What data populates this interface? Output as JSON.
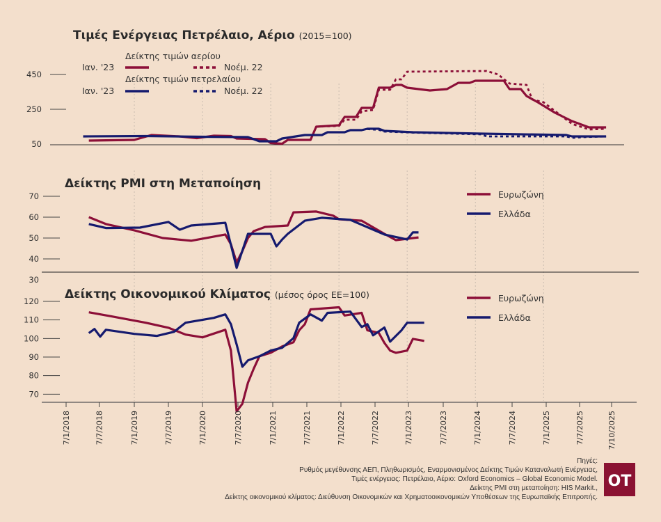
{
  "colors": {
    "background": "#f3dfcc",
    "eurozone_gas_red": "#8c0f38",
    "greece_oil_blue": "#151a6e",
    "logo": "#8a1232"
  },
  "shared_x_axis": {
    "tick_labels": [
      "7/1/2018",
      "7/7/2018",
      "7/1/2019",
      "7/7/2019",
      "7/1/2020",
      "7/7/2020",
      "7/1/2021",
      "7/7/2021",
      "7/1/2022",
      "7/7/2022",
      "7/1/2023",
      "7/7/2023",
      "7/1/2024",
      "7/7/2024",
      "7/1/2025",
      "7/7/2025",
      "7/10/2025"
    ]
  },
  "chart_data": [
    {
      "type": "line",
      "title": "Τιμές Ενέργειας Πετρέλαιο, Αέριο",
      "subtitle": "(2015=100)",
      "yticks": [
        50,
        250,
        450
      ],
      "ylim": [
        50,
        450
      ],
      "grid": "vertical dotted",
      "legend": {
        "gas_label": "Δείκτης τιμών αερίου",
        "oil_label": "Δείκτης τιμών πετρελαίου",
        "solid_label": "Ιαν. '23",
        "dashed_label": "Νοέμ. 22"
      },
      "series": [
        {
          "name": "Δείκτης τιμών αερίου Ιαν. '23",
          "color": "#8c0f38",
          "style": "solid",
          "points": [
            [
              "2018-05",
              70
            ],
            [
              "2019-01",
              74
            ],
            [
              "2019-04",
              102
            ],
            [
              "2019-09",
              94
            ],
            [
              "2019-12",
              84
            ],
            [
              "2020-03",
              98
            ],
            [
              "2020-06",
              96
            ],
            [
              "2020-07",
              82
            ],
            [
              "2020-12",
              78
            ],
            [
              "2021-01",
              56
            ],
            [
              "2021-03",
              52
            ],
            [
              "2021-04",
              74
            ],
            [
              "2021-08",
              74
            ],
            [
              "2021-09",
              150
            ],
            [
              "2022-01",
              158
            ],
            [
              "2022-02",
              206
            ],
            [
              "2022-04",
              206
            ],
            [
              "2022-05",
              258
            ],
            [
              "2022-07",
              258
            ],
            [
              "2022-08",
              374
            ],
            [
              "2022-10",
              374
            ],
            [
              "2022-11",
              390
            ],
            [
              "2022-12",
              390
            ],
            [
              "2023-01",
              374
            ],
            [
              "2023-05",
              358
            ],
            [
              "2023-08",
              366
            ],
            [
              "2023-10",
              402
            ],
            [
              "2023-12",
              402
            ],
            [
              "2024-01",
              414
            ],
            [
              "2024-06",
              414
            ],
            [
              "2024-07",
              366
            ],
            [
              "2024-09",
              366
            ],
            [
              "2024-10",
              326
            ],
            [
              "2024-12",
              290
            ],
            [
              "2025-03",
              230
            ],
            [
              "2025-06",
              182
            ],
            [
              "2025-09",
              146
            ],
            [
              "2025-12",
              146
            ]
          ]
        },
        {
          "name": "Δείκτης τιμών αερίου Νοέμ. 22",
          "color": "#8c0f38",
          "style": "dashed",
          "points": [
            [
              "2021-09",
              150
            ],
            [
              "2022-01",
              154
            ],
            [
              "2022-02",
              190
            ],
            [
              "2022-04",
              190
            ],
            [
              "2022-05",
              238
            ],
            [
              "2022-07",
              246
            ],
            [
              "2022-08",
              362
            ],
            [
              "2022-10",
              362
            ],
            [
              "2022-11",
              422
            ],
            [
              "2022-12",
              422
            ],
            [
              "2023-01",
              466
            ],
            [
              "2024-03",
              470
            ],
            [
              "2024-05",
              450
            ],
            [
              "2024-07",
              398
            ],
            [
              "2024-10",
              390
            ],
            [
              "2024-11",
              306
            ],
            [
              "2025-01",
              290
            ],
            [
              "2025-03",
              240
            ],
            [
              "2025-06",
              166
            ],
            [
              "2025-09",
              134
            ],
            [
              "2025-12",
              138
            ]
          ]
        },
        {
          "name": "Δείκτης τιμών πετρελαίου Ιαν. '23",
          "color": "#151a6e",
          "style": "solid",
          "points": [
            [
              "2018-04",
              94
            ],
            [
              "2019-03",
              96
            ],
            [
              "2020-01",
              92
            ],
            [
              "2020-09",
              90
            ],
            [
              "2020-11",
              66
            ],
            [
              "2021-02",
              66
            ],
            [
              "2021-03",
              82
            ],
            [
              "2021-07",
              102
            ],
            [
              "2021-10",
              102
            ],
            [
              "2021-11",
              118
            ],
            [
              "2022-02",
              118
            ],
            [
              "2022-03",
              130
            ],
            [
              "2022-05",
              130
            ],
            [
              "2022-06",
              138
            ],
            [
              "2022-08",
              138
            ],
            [
              "2022-09",
              126
            ],
            [
              "2023-02",
              118
            ],
            [
              "2024-02",
              110
            ],
            [
              "2025-05",
              102
            ],
            [
              "2025-06",
              94
            ],
            [
              "2025-12",
              94
            ]
          ]
        },
        {
          "name": "Δείκτης τιμών πετρελαίου Νοέμ. 22",
          "color": "#151a6e",
          "style": "dashed",
          "points": [
            [
              "2022-06",
              136
            ],
            [
              "2022-08",
              132
            ],
            [
              "2022-09",
              122
            ],
            [
              "2023-02",
              116
            ],
            [
              "2024-02",
              106
            ],
            [
              "2024-03",
              94
            ],
            [
              "2025-05",
              94
            ],
            [
              "2025-06",
              86
            ],
            [
              "2025-08",
              90
            ],
            [
              "2025-12",
              94
            ]
          ]
        }
      ]
    },
    {
      "type": "line",
      "title": "Δείκτης PMI στη Μεταποίηση",
      "yticks": [
        30,
        40,
        50,
        60,
        70
      ],
      "ylim": [
        30,
        70
      ],
      "grid": "vertical dotted",
      "legend": "right",
      "series": [
        {
          "name": "Ευρωζώνη",
          "color": "#8c0f38",
          "points": [
            [
              "2018-05",
              60
            ],
            [
              "2018-08",
              56.7
            ],
            [
              "2019-01",
              53.7
            ],
            [
              "2019-06",
              50
            ],
            [
              "2019-11",
              48.7
            ],
            [
              "2020-05",
              51.7
            ],
            [
              "2020-06",
              47
            ],
            [
              "2020-07",
              38.3
            ],
            [
              "2020-08",
              43.7
            ],
            [
              "2020-09",
              50
            ],
            [
              "2020-10",
              53.3
            ],
            [
              "2020-12",
              55.3
            ],
            [
              "2021-04",
              56
            ],
            [
              "2021-05",
              62.3
            ],
            [
              "2021-09",
              62.7
            ],
            [
              "2021-12",
              60.7
            ],
            [
              "2022-01",
              59
            ],
            [
              "2022-05",
              58.3
            ],
            [
              "2022-09",
              52
            ],
            [
              "2022-11",
              49
            ],
            [
              "2023-03",
              50.3
            ]
          ]
        },
        {
          "name": "Ελλάδα",
          "color": "#151a6e",
          "points": [
            [
              "2018-05",
              56.7
            ],
            [
              "2018-08",
              54.8
            ],
            [
              "2019-02",
              55
            ],
            [
              "2019-07",
              57.7
            ],
            [
              "2019-09",
              54
            ],
            [
              "2019-11",
              56
            ],
            [
              "2020-05",
              57.3
            ],
            [
              "2020-06",
              46.7
            ],
            [
              "2020-07",
              35.7
            ],
            [
              "2020-09",
              52
            ],
            [
              "2021-01",
              52
            ],
            [
              "2021-02",
              46
            ],
            [
              "2021-03",
              49.3
            ],
            [
              "2021-04",
              52
            ],
            [
              "2021-07",
              58.3
            ],
            [
              "2021-10",
              59.7
            ],
            [
              "2022-03",
              58.7
            ],
            [
              "2022-09",
              51.7
            ],
            [
              "2023-01",
              49.3
            ],
            [
              "2023-02",
              52.7
            ],
            [
              "2023-03",
              52.7
            ]
          ]
        }
      ]
    },
    {
      "type": "line",
      "title": "Δείκτης Οικονομικού Κλίματος",
      "subtitle": "(μέσος όρος ΕΕ=100)",
      "yticks": [
        70,
        80,
        90,
        100,
        110,
        120
      ],
      "ylim": [
        60,
        120
      ],
      "grid": "vertical dotted",
      "legend": "right",
      "series": [
        {
          "name": "Ευρωζώνη",
          "color": "#8c0f38",
          "points": [
            [
              "2018-05",
              114.1
            ],
            [
              "2018-09",
              111.9
            ],
            [
              "2019-03",
              108.5
            ],
            [
              "2019-07",
              105.8
            ],
            [
              "2019-10",
              102.1
            ],
            [
              "2020-01",
              100.6
            ],
            [
              "2020-05",
              104.7
            ],
            [
              "2020-06",
              93.5
            ],
            [
              "2020-07",
              60.7
            ],
            [
              "2020-08",
              64.8
            ],
            [
              "2020-09",
              76.2
            ],
            [
              "2020-10",
              83.7
            ],
            [
              "2020-11",
              90.4
            ],
            [
              "2021-01",
              92.3
            ],
            [
              "2021-03",
              95.7
            ],
            [
              "2021-05",
              98
            ],
            [
              "2021-06",
              104.4
            ],
            [
              "2021-07",
              107.7
            ],
            [
              "2021-08",
              115.7
            ],
            [
              "2022-01",
              116.8
            ],
            [
              "2022-02",
              112.4
            ],
            [
              "2022-05",
              113.8
            ],
            [
              "2022-06",
              104.4
            ],
            [
              "2022-08",
              103
            ],
            [
              "2022-09",
              97.6
            ],
            [
              "2022-10",
              93.5
            ],
            [
              "2022-11",
              92.3
            ],
            [
              "2023-01",
              93.5
            ],
            [
              "2023-02",
              99.8
            ],
            [
              "2023-04",
              98.7
            ]
          ]
        },
        {
          "name": "Ελλάδα",
          "color": "#151a6e",
          "points": [
            [
              "2018-05",
              102.9
            ],
            [
              "2018-06",
              105.1
            ],
            [
              "2018-07",
              101
            ],
            [
              "2018-08",
              104.7
            ],
            [
              "2019-01",
              102.5
            ],
            [
              "2019-05",
              101.4
            ],
            [
              "2019-08",
              103.6
            ],
            [
              "2019-10",
              108.5
            ],
            [
              "2020-03",
              111.1
            ],
            [
              "2020-05",
              113
            ],
            [
              "2020-06",
              107.7
            ],
            [
              "2020-07",
              96.8
            ],
            [
              "2020-08",
              84.8
            ],
            [
              "2020-09",
              88.2
            ],
            [
              "2020-11",
              90.4
            ],
            [
              "2021-01",
              93.5
            ],
            [
              "2021-03",
              95
            ],
            [
              "2021-05",
              100.2
            ],
            [
              "2021-06",
              108.5
            ],
            [
              "2021-08",
              113
            ],
            [
              "2021-10",
              109.6
            ],
            [
              "2021-11",
              113.8
            ],
            [
              "2022-03",
              114.5
            ],
            [
              "2022-05",
              106.2
            ],
            [
              "2022-06",
              107.7
            ],
            [
              "2022-07",
              101.7
            ],
            [
              "2022-09",
              105.9
            ],
            [
              "2022-10",
              98.3
            ],
            [
              "2022-12",
              104.4
            ],
            [
              "2023-01",
              108.5
            ],
            [
              "2023-04",
              108.5
            ]
          ]
        }
      ]
    }
  ],
  "sources": {
    "heading": "Πηγές:",
    "lines": [
      "Ρυθμός μεγέθυνσης ΑΕΠ, Πληθωρισμός, Εναρμονισμένος Δείκτης Τιμών Καταναλωτή Ενέργειας,",
      "Τιμές ενέργειας: Πετρέλαιο, Αέριο: Oxford Economics – Global Economic Model.",
      "Δείκτης PMI στη μεταποίηση: HIS Markit.,",
      "Δείκτης οικονομικού κλίματος: Διεύθυνση Οικονομικών και Χρηματοοικονομικών Υποθέσεων της Ευρωπαϊκής Επιτροπής."
    ]
  },
  "logo": {
    "text": "OT"
  }
}
